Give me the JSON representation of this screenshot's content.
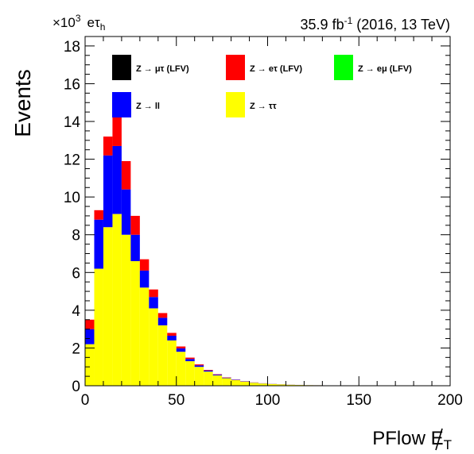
{
  "header": {
    "scale": "×10",
    "scale_exp": "3",
    "channel": "eτ",
    "channel_sub": "h",
    "lumi_pre": "35.9 fb",
    "lumi_exp": "-1",
    "lumi_post": " (2016, 13 TeV)"
  },
  "chart_data": {
    "type": "bar",
    "stacked": true,
    "ylabel": "Events",
    "xlabel": "PFlow E",
    "xlabel_sub": "T",
    "x_ticks": [
      "0",
      "50",
      "100",
      "150",
      "200"
    ],
    "y_ticks": [
      "0",
      "2",
      "4",
      "6",
      "8",
      "10",
      "12",
      "14",
      "16",
      "18"
    ],
    "xlim": [
      0,
      200
    ],
    "ylim": [
      0,
      18.5
    ],
    "y_unit_scale": 1000,
    "bin_width": 5,
    "legend_placement": "top",
    "bin_edges_low": [
      0,
      5,
      10,
      15,
      20,
      25,
      30,
      35,
      40,
      45,
      50,
      55,
      60,
      65,
      70,
      75,
      80,
      85,
      90,
      95,
      100,
      105,
      110,
      115,
      120,
      125,
      130,
      135,
      140,
      145,
      150,
      155,
      160,
      165,
      170,
      175,
      180,
      185,
      190,
      195
    ],
    "series": [
      {
        "name": "Z → ττ",
        "color": "#ffff00",
        "values": [
          2.2,
          6.2,
          8.4,
          9.1,
          8.0,
          6.6,
          5.2,
          4.1,
          3.2,
          2.4,
          1.8,
          1.3,
          1.0,
          0.75,
          0.55,
          0.4,
          0.3,
          0.22,
          0.16,
          0.12,
          0.09,
          0.07,
          0.05,
          0.04,
          0.03,
          0.025,
          0.02,
          0.015,
          0.012,
          0.01,
          0.008,
          0.006,
          0.005,
          0.004,
          0.003,
          0.003,
          0.002,
          0.002,
          0.001,
          0.001
        ]
      },
      {
        "name": "Z → ll",
        "color": "#0000ff",
        "values": [
          0.8,
          2.6,
          3.8,
          3.6,
          2.4,
          1.4,
          0.9,
          0.6,
          0.4,
          0.25,
          0.18,
          0.12,
          0.08,
          0.06,
          0.04,
          0.03,
          0.02,
          0.015,
          0.01,
          0.008,
          0.006,
          0.005,
          0.004,
          0.003,
          0.002,
          0.002,
          0.001,
          0.001,
          0.001,
          0.001,
          0,
          0,
          0,
          0,
          0,
          0,
          0,
          0,
          0,
          0
        ]
      },
      {
        "name": "Z → eτ (LFV)",
        "color": "#ff0000",
        "values": [
          0.5,
          0.5,
          1.0,
          1.6,
          1.5,
          1.0,
          0.6,
          0.4,
          0.25,
          0.15,
          0.1,
          0.07,
          0.05,
          0.03,
          0.02,
          0.015,
          0.01,
          0.008,
          0.006,
          0.004,
          0.003,
          0.002,
          0.002,
          0.001,
          0.001,
          0.001,
          0,
          0,
          0,
          0,
          0,
          0,
          0,
          0,
          0,
          0,
          0,
          0,
          0,
          0
        ]
      },
      {
        "name": "Z → μτ (LFV)",
        "color": "#000000",
        "values": [
          0,
          0,
          0,
          0,
          0,
          0,
          0,
          0,
          0,
          0,
          0,
          0,
          0,
          0,
          0,
          0,
          0,
          0,
          0,
          0,
          0,
          0,
          0,
          0,
          0,
          0,
          0,
          0,
          0,
          0,
          0,
          0,
          0,
          0,
          0,
          0,
          0,
          0,
          0,
          0
        ]
      },
      {
        "name": "Z → eμ (LFV)",
        "color": "#00ff00",
        "values": [
          0,
          0,
          0,
          0,
          0,
          0,
          0,
          0,
          0,
          0,
          0,
          0,
          0,
          0,
          0,
          0,
          0,
          0,
          0,
          0,
          0,
          0,
          0,
          0,
          0,
          0,
          0,
          0,
          0,
          0,
          0,
          0,
          0,
          0,
          0,
          0,
          0,
          0,
          0,
          0
        ]
      }
    ],
    "legend": [
      {
        "label": "Z → μτ (LFV)",
        "color": "#000000"
      },
      {
        "label": "Z → eτ (LFV)",
        "color": "#ff0000"
      },
      {
        "label": "Z → eμ (LFV)",
        "color": "#00ff00"
      },
      {
        "label": "Z → ll",
        "color": "#0000ff"
      },
      {
        "label": "Z → ττ",
        "color": "#ffff00"
      }
    ]
  }
}
